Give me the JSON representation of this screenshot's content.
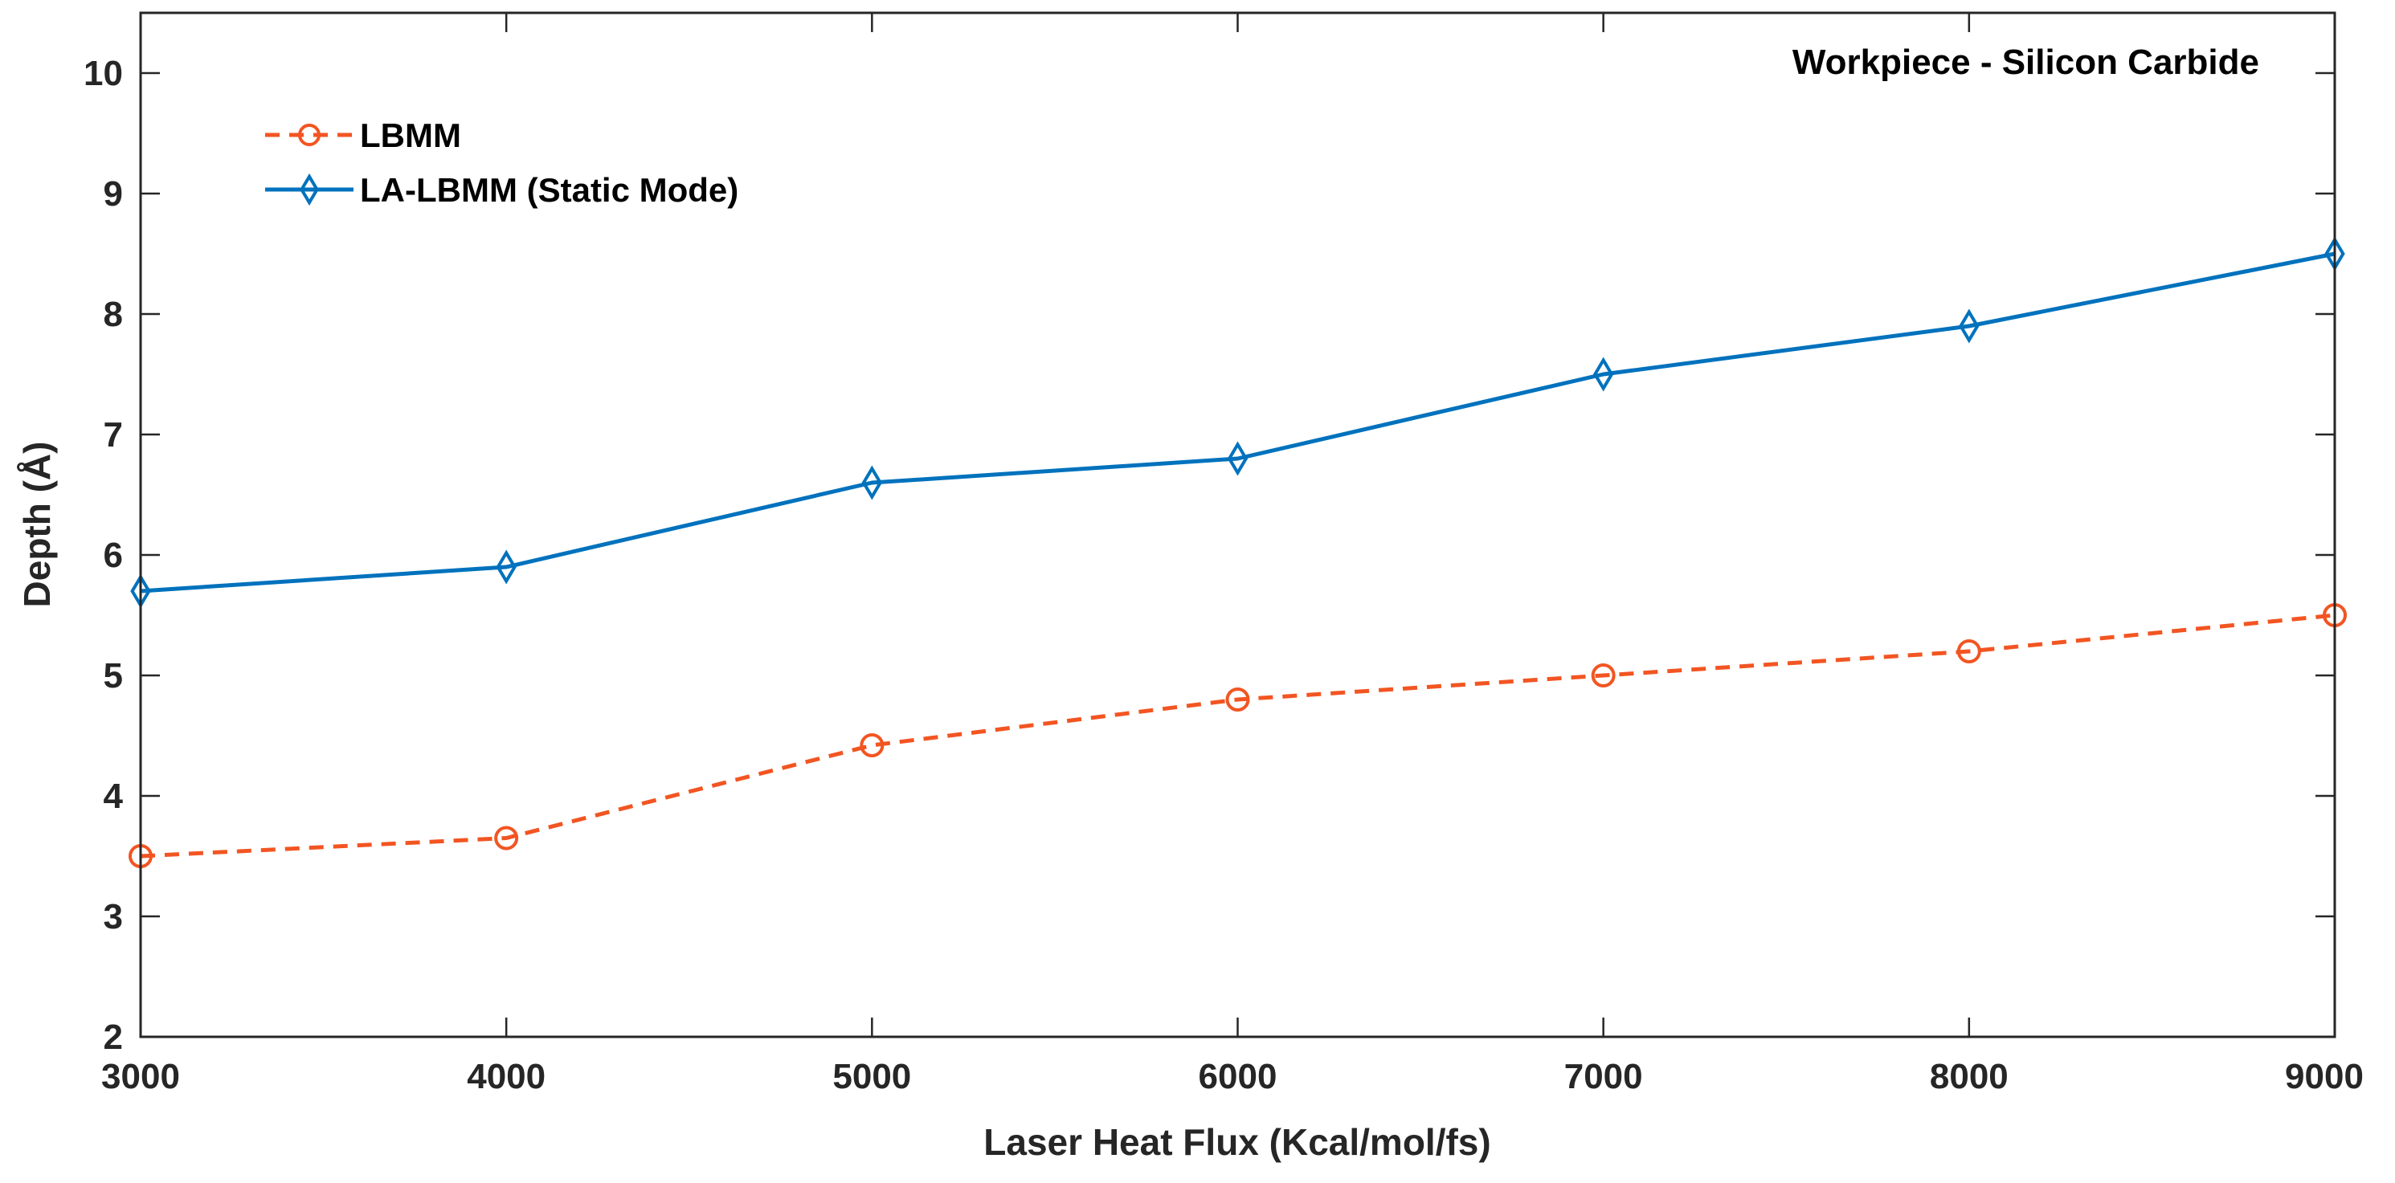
{
  "chart_data": {
    "type": "line",
    "title": "",
    "annotation": "Workpiece - Silicon Carbide",
    "xlabel": "Laser Heat Flux (Kcal/mol/fs)",
    "ylabel": "Depth (Å)",
    "x": [
      3000,
      4000,
      5000,
      6000,
      7000,
      8000,
      9000
    ],
    "xlim": [
      3000,
      9000
    ],
    "ylim": [
      2,
      10.5
    ],
    "xticks": [
      "3000",
      "4000",
      "5000",
      "6000",
      "7000",
      "8000",
      "9000"
    ],
    "yticks": [
      "2",
      "3",
      "4",
      "5",
      "6",
      "7",
      "8",
      "9",
      "10"
    ],
    "grid": false,
    "legend_position": "top-left",
    "series": [
      {
        "name": "LBMM",
        "values": [
          3.5,
          3.65,
          4.42,
          4.8,
          5.0,
          5.2,
          5.5
        ],
        "color": "#F25522",
        "line_style": "dashed",
        "marker": "circle"
      },
      {
        "name": "LA-LBMM (Static Mode)",
        "values": [
          5.7,
          5.9,
          6.6,
          6.8,
          7.5,
          7.9,
          8.5
        ],
        "color": "#0072BD",
        "line_style": "solid",
        "marker": "diamond"
      }
    ]
  }
}
